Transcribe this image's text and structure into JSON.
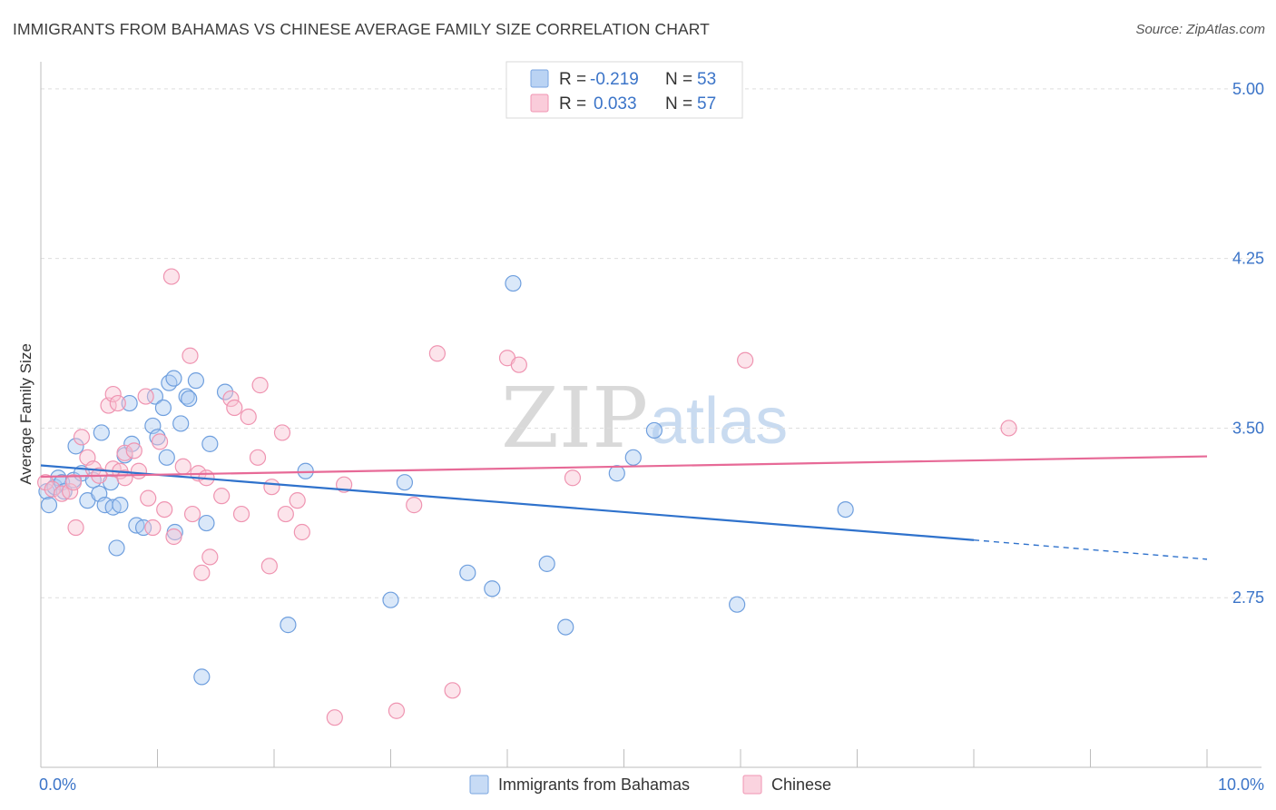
{
  "title": "IMMIGRANTS FROM BAHAMAS VS CHINESE AVERAGE FAMILY SIZE CORRELATION CHART",
  "source": "Source: ZipAtlas.com",
  "watermark": {
    "zip": "ZIP",
    "atlas": "atlas"
  },
  "legend": {
    "r_label": "R =",
    "n_label": "N =",
    "rows": [
      {
        "r": "-0.219",
        "n": "53",
        "color": "#aecbf1",
        "stroke": "#7aa6e0"
      },
      {
        "r": "0.033",
        "n": "57",
        "color": "#f9c3d3",
        "stroke": "#f095b3"
      }
    ]
  },
  "bottom_legend": [
    {
      "label": "Immigrants from Bahamas",
      "color": "#c7dbf5",
      "stroke": "#7aa6e0"
    },
    {
      "label": "Chinese",
      "color": "#fad3df",
      "stroke": "#f095b3"
    }
  ],
  "chart_data": {
    "type": "scatter",
    "title": "IMMIGRANTS FROM BAHAMAS VS CHINESE AVERAGE FAMILY SIZE CORRELATION CHART",
    "xlabel": "",
    "ylabel": "Average Family Size",
    "xlim": [
      0,
      10
    ],
    "ylim": [
      2.0,
      5.12
    ],
    "x_tick_labels": [
      "0.0%",
      "10.0%"
    ],
    "y_ticks": [
      2.75,
      3.5,
      4.25,
      5.0
    ],
    "y_tick_labels": [
      "2.75",
      "3.50",
      "4.25",
      "5.00"
    ],
    "grid": true,
    "legend_position": "top-center",
    "series": [
      {
        "name": "Immigrants from Bahamas",
        "color": "#aecbf1",
        "stroke": "#6f9fde",
        "line_color": "#2f72cc",
        "trend": {
          "x0": 0.0,
          "y0": 3.335,
          "x1": 8.0,
          "y1": 3.005,
          "dash_to": 10.0,
          "dash_y": 2.92
        },
        "points": [
          [
            0.05,
            3.22
          ],
          [
            0.07,
            3.16
          ],
          [
            0.12,
            3.24
          ],
          [
            0.15,
            3.28
          ],
          [
            0.18,
            3.26
          ],
          [
            0.2,
            3.22
          ],
          [
            0.28,
            3.27
          ],
          [
            0.4,
            3.18
          ],
          [
            0.3,
            3.42
          ],
          [
            0.35,
            3.3
          ],
          [
            0.45,
            3.27
          ],
          [
            0.5,
            3.21
          ],
          [
            0.55,
            3.16
          ],
          [
            0.62,
            3.15
          ],
          [
            0.52,
            3.48
          ],
          [
            0.6,
            3.26
          ],
          [
            0.68,
            3.16
          ],
          [
            0.65,
            2.97
          ],
          [
            0.72,
            3.38
          ],
          [
            0.76,
            3.61
          ],
          [
            0.78,
            3.43
          ],
          [
            0.82,
            3.07
          ],
          [
            0.88,
            3.06
          ],
          [
            0.96,
            3.51
          ],
          [
            0.98,
            3.64
          ],
          [
            1.0,
            3.46
          ],
          [
            1.05,
            3.59
          ],
          [
            1.08,
            3.37
          ],
          [
            1.1,
            3.7
          ],
          [
            1.14,
            3.72
          ],
          [
            1.15,
            3.04
          ],
          [
            1.2,
            3.52
          ],
          [
            1.25,
            3.64
          ],
          [
            1.27,
            3.63
          ],
          [
            1.33,
            3.71
          ],
          [
            1.38,
            2.4
          ],
          [
            1.42,
            3.08
          ],
          [
            1.45,
            3.43
          ],
          [
            1.58,
            3.66
          ],
          [
            2.12,
            2.63
          ],
          [
            2.27,
            3.31
          ],
          [
            3.0,
            2.74
          ],
          [
            3.12,
            3.26
          ],
          [
            3.66,
            2.86
          ],
          [
            3.87,
            2.79
          ],
          [
            4.05,
            4.14
          ],
          [
            4.34,
            2.9
          ],
          [
            4.5,
            2.62
          ],
          [
            4.94,
            3.3
          ],
          [
            5.08,
            3.37
          ],
          [
            5.26,
            3.49
          ],
          [
            5.97,
            2.72
          ],
          [
            6.9,
            3.14
          ]
        ]
      },
      {
        "name": "Chinese",
        "color": "#f9c3d3",
        "stroke": "#ef94b1",
        "line_color": "#e76a97",
        "trend": {
          "x0": 0.0,
          "y0": 3.285,
          "x1": 10.0,
          "y1": 3.375
        },
        "points": [
          [
            0.04,
            3.26
          ],
          [
            0.1,
            3.23
          ],
          [
            0.18,
            3.21
          ],
          [
            0.25,
            3.22
          ],
          [
            0.3,
            3.06
          ],
          [
            0.28,
            3.26
          ],
          [
            0.35,
            3.46
          ],
          [
            0.4,
            3.37
          ],
          [
            0.45,
            3.32
          ],
          [
            0.5,
            3.29
          ],
          [
            0.58,
            3.6
          ],
          [
            0.62,
            3.32
          ],
          [
            0.68,
            3.31
          ],
          [
            0.72,
            3.28
          ],
          [
            0.62,
            3.65
          ],
          [
            0.66,
            3.61
          ],
          [
            0.72,
            3.39
          ],
          [
            0.8,
            3.4
          ],
          [
            0.84,
            3.31
          ],
          [
            0.9,
            3.64
          ],
          [
            0.92,
            3.19
          ],
          [
            0.96,
            3.06
          ],
          [
            1.02,
            3.44
          ],
          [
            1.06,
            3.14
          ],
          [
            1.12,
            4.17
          ],
          [
            1.14,
            3.02
          ],
          [
            1.22,
            3.33
          ],
          [
            1.28,
            3.82
          ],
          [
            1.3,
            3.12
          ],
          [
            1.35,
            3.3
          ],
          [
            1.38,
            2.86
          ],
          [
            1.42,
            3.28
          ],
          [
            1.45,
            2.93
          ],
          [
            1.55,
            3.2
          ],
          [
            1.63,
            3.63
          ],
          [
            1.66,
            3.59
          ],
          [
            1.72,
            3.12
          ],
          [
            1.78,
            3.55
          ],
          [
            1.86,
            3.37
          ],
          [
            1.88,
            3.69
          ],
          [
            1.96,
            2.89
          ],
          [
            1.98,
            3.24
          ],
          [
            2.07,
            3.48
          ],
          [
            2.1,
            3.12
          ],
          [
            2.2,
            3.18
          ],
          [
            2.24,
            3.04
          ],
          [
            2.52,
            2.22
          ],
          [
            2.6,
            3.25
          ],
          [
            3.05,
            2.25
          ],
          [
            3.2,
            3.16
          ],
          [
            3.4,
            3.83
          ],
          [
            3.53,
            2.34
          ],
          [
            4.0,
            3.81
          ],
          [
            4.1,
            3.78
          ],
          [
            4.56,
            3.28
          ],
          [
            6.04,
            3.8
          ],
          [
            8.3,
            3.5
          ]
        ]
      }
    ]
  }
}
